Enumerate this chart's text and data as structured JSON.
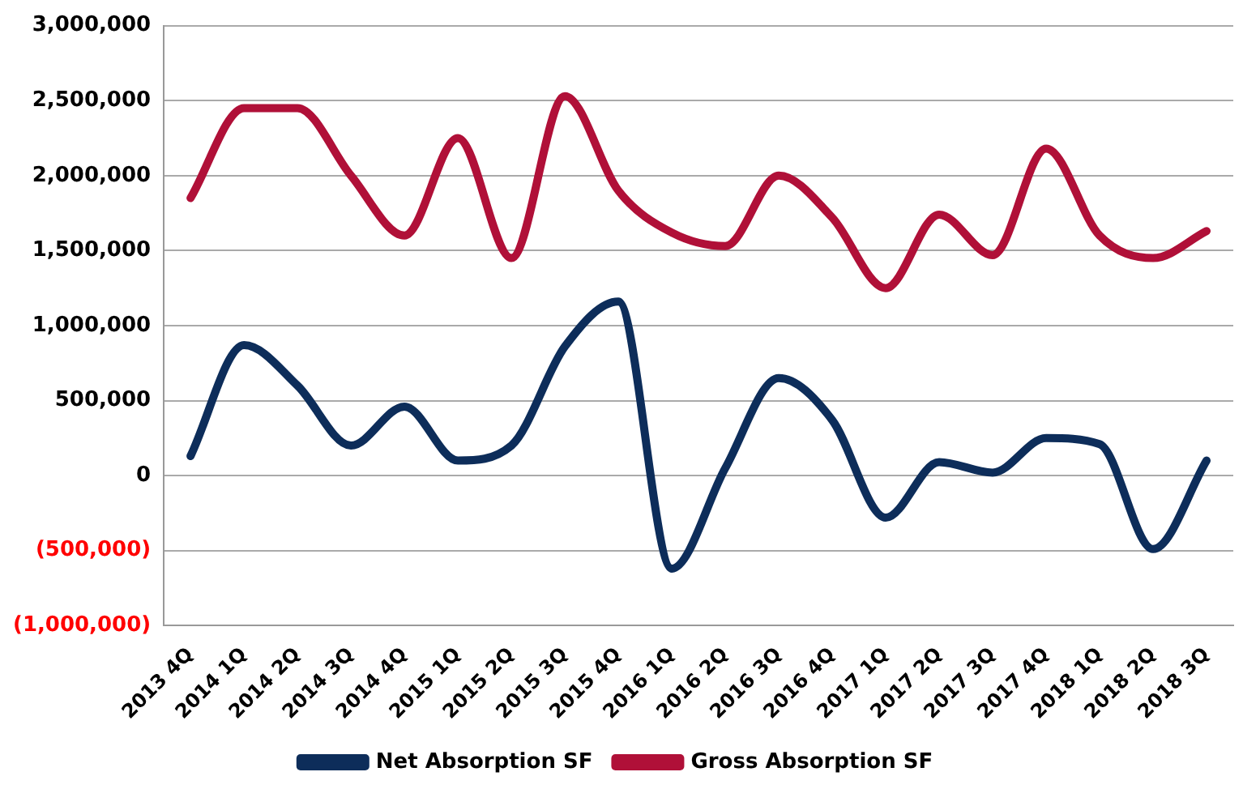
{
  "chart_data": {
    "type": "line",
    "categories": [
      "2013 4Q",
      "2014 1Q",
      "2014 2Q",
      "2014 3Q",
      "2014 4Q",
      "2015 1Q",
      "2015 2Q",
      "2015 3Q",
      "2015 4Q",
      "2016 1Q",
      "2016 2Q",
      "2016 3Q",
      "2016 4Q",
      "2017 1Q",
      "2017 2Q",
      "2017 3Q",
      "2017 4Q",
      "2018 1Q",
      "2018 2Q",
      "2018 3Q"
    ],
    "series": [
      {
        "name": "Net Absorption SF",
        "color": "#0d2d5a",
        "values": [
          130000,
          870000,
          600000,
          200000,
          460000,
          100000,
          200000,
          860000,
          1160000,
          -620000,
          50000,
          650000,
          370000,
          -280000,
          90000,
          20000,
          250000,
          210000,
          -490000,
          100000
        ]
      },
      {
        "name": "Gross Absorption SF",
        "color": "#b01038",
        "values": [
          1850000,
          2450000,
          2450000,
          2000000,
          1600000,
          2250000,
          1450000,
          2530000,
          1900000,
          1620000,
          1530000,
          2000000,
          1720000,
          1250000,
          1740000,
          1470000,
          2180000,
          1600000,
          1450000,
          1630000
        ]
      }
    ],
    "ylim": [
      -1000000,
      3000000
    ],
    "yticks": [
      {
        "value": -1000000,
        "label": "(1,000,000)"
      },
      {
        "value": -500000,
        "label": "(500,000)"
      },
      {
        "value": 0,
        "label": "0"
      },
      {
        "value": 500000,
        "label": "500,000"
      },
      {
        "value": 1000000,
        "label": "1,000,000"
      },
      {
        "value": 1500000,
        "label": "1,500,000"
      },
      {
        "value": 2000000,
        "label": "2,000,000"
      },
      {
        "value": 2500000,
        "label": "2,500,000"
      },
      {
        "value": 3000000,
        "label": "3,000,000"
      }
    ],
    "grid": "y",
    "legend": "bottom",
    "marker": "none",
    "line_style": "solid"
  }
}
